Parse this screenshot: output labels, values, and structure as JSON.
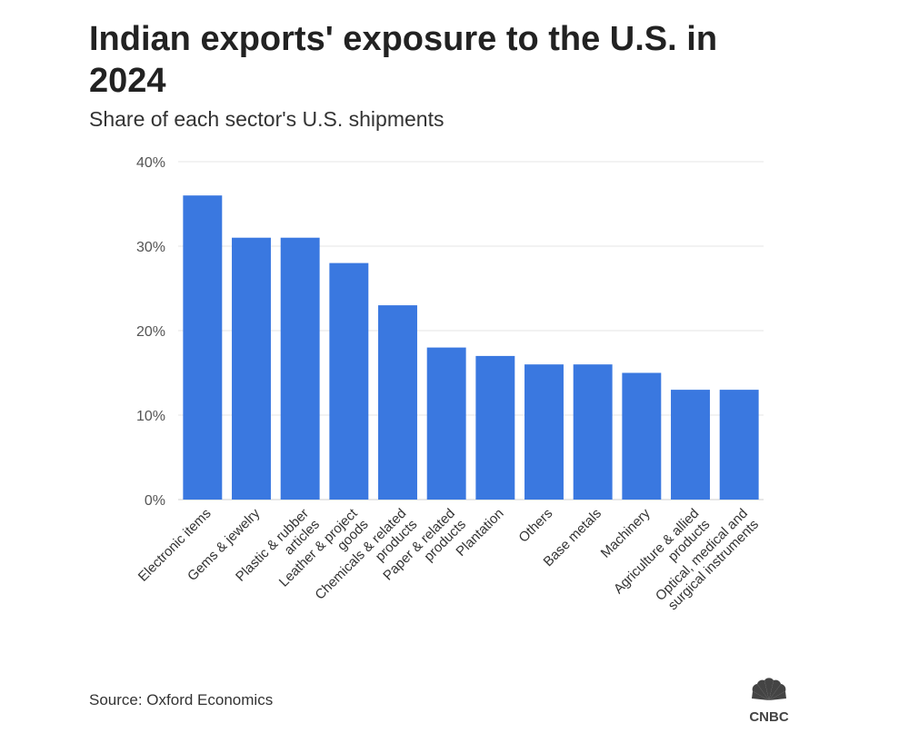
{
  "title": "Indian exports' exposure to the U.S. in 2024",
  "subtitle": "Share of each sector's U.S. shipments",
  "source": "Source: Oxford Economics",
  "logo_text": "CNBC",
  "colors": {
    "bar": "#3a78e0",
    "grid": "#e6e6e6",
    "text": "#222222"
  },
  "chart_data": {
    "type": "bar",
    "title": "Indian exports' exposure to the U.S. in 2024",
    "subtitle": "Share of each sector's U.S. shipments",
    "categories": [
      "Electronic items",
      "Gems & jewelry",
      "Plastic & rubber articles",
      "Leather & project goods",
      "Chemicals & related products",
      "Paper & related products",
      "Plantation",
      "Others",
      "Base metals",
      "Machinery",
      "Agriculture & allied products",
      "Optical, medical and surgical instruments"
    ],
    "category_lines": [
      [
        "Electronic items"
      ],
      [
        "Gems & jewelry"
      ],
      [
        "Plastic & rubber",
        "articles"
      ],
      [
        "Leather & project",
        "goods"
      ],
      [
        "Chemicals & related",
        "products"
      ],
      [
        "Paper & related",
        "products"
      ],
      [
        "Plantation"
      ],
      [
        "Others"
      ],
      [
        "Base metals"
      ],
      [
        "Machinery"
      ],
      [
        "Agriculture & allied",
        "products"
      ],
      [
        "Optical, medical and",
        "surgical instruments"
      ]
    ],
    "values": [
      36,
      31,
      31,
      28,
      23,
      18,
      17,
      16,
      16,
      15,
      13,
      13
    ],
    "ylim": [
      0,
      40
    ],
    "yticks": [
      0,
      10,
      20,
      30,
      40
    ],
    "ytick_labels": [
      "0%",
      "10%",
      "20%",
      "30%",
      "40%"
    ],
    "xlabel": "",
    "ylabel": "",
    "grid": true
  }
}
